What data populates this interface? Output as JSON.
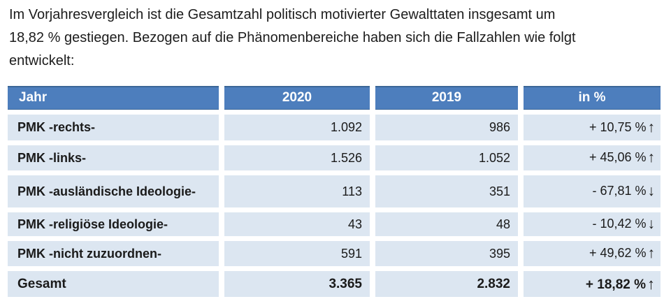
{
  "intro": {
    "text": "Im Vorjahresvergleich ist die Gesamtzahl politisch motivierter Gewalttaten insgesamt um\n18,82 % gestiegen. Bezogen auf die Phänomenbereiche haben sich die Fallzahlen wie folgt\nentwickelt:"
  },
  "table": {
    "columns": [
      "Jahr",
      "2020",
      "2019",
      "in %"
    ],
    "rows": [
      {
        "label": "PMK -rechts-",
        "y2020": "1.092",
        "y2019": "986",
        "pct": "+ 10,75 %",
        "arrow": "↑",
        "trend": "up"
      },
      {
        "label": "PMK -links-",
        "y2020": "1.526",
        "y2019": "1.052",
        "pct": "+ 45,06 %",
        "arrow": "↑",
        "trend": "up"
      },
      {
        "label": "PMK -ausländische Ideologie-",
        "y2020": "113",
        "y2019": "351",
        "pct": "- 67,81 %",
        "arrow": "↓",
        "trend": "down"
      },
      {
        "label": "PMK -religiöse Ideologie-",
        "y2020": "43",
        "y2019": "48",
        "pct": "- 10,42 %",
        "arrow": "↓",
        "trend": "down"
      },
      {
        "label": "PMK -nicht zuzuordnen-",
        "y2020": "591",
        "y2019": "395",
        "pct": "+ 49,62 %",
        "arrow": "↑",
        "trend": "up"
      },
      {
        "label": "Gesamt",
        "y2020": "3.365",
        "y2019": "2.832",
        "pct": "+ 18,82 %",
        "arrow": "↑",
        "trend": "up"
      }
    ]
  },
  "colors": {
    "header_bg": "#4d7ebd",
    "header_edge": "#3b6697",
    "row_bg": "#dce6f1",
    "text": "#1a1a1a"
  }
}
